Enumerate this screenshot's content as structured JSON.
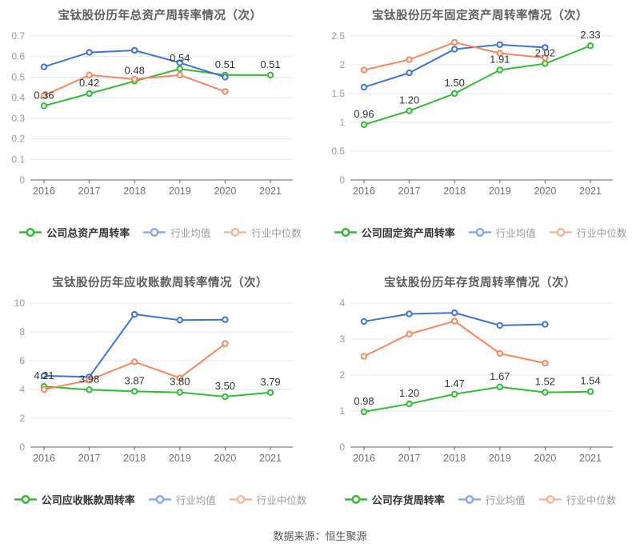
{
  "page": {
    "footer_source": "数据来源：恒生聚源"
  },
  "palette": {
    "company": "#34bb34",
    "industry_avg": "#3f72d9",
    "industry_median": "#f8875c",
    "industry_avg_legend": "#8aabef",
    "industry_median_legend": "#f8b797",
    "grid": "#dfe5f3",
    "axis": "#606060",
    "y_tick": "#999999",
    "x_tick": "#707070",
    "data_label": "#333333"
  },
  "chart_data": [
    {
      "id": "total-asset-turnover",
      "type": "line",
      "title": "宝钛股份历年总资产周转率情况（次）",
      "categories": [
        "2016",
        "2017",
        "2018",
        "2019",
        "2020",
        "2021"
      ],
      "ymax": 0.7,
      "yticks": [
        "0",
        "0.1",
        "0.2",
        "0.3",
        "0.4",
        "0.5",
        "0.6",
        "0.7"
      ],
      "grid": true,
      "legend_position": "bottom",
      "series": [
        {
          "name": "公司总资产周转率",
          "color_key": "company",
          "values": [
            0.36,
            0.42,
            0.48,
            0.54,
            0.51,
            0.51
          ],
          "labels": [
            "0.36",
            "0.42",
            "0.48",
            "0.54",
            "0.51",
            "0.51"
          ]
        },
        {
          "name": "行业均值",
          "color_key": "industry_avg",
          "values": [
            0.55,
            0.62,
            0.63,
            0.57,
            0.5,
            null
          ]
        },
        {
          "name": "行业中位数",
          "color_key": "industry_median",
          "values": [
            0.41,
            0.51,
            0.49,
            0.51,
            0.43,
            null
          ]
        }
      ]
    },
    {
      "id": "fixed-asset-turnover",
      "type": "line",
      "title": "宝钛股份历年固定资产周转率情况（次）",
      "categories": [
        "2016",
        "2017",
        "2018",
        "2019",
        "2020",
        "2021"
      ],
      "ymax": 2.5,
      "yticks": [
        "0",
        "0.5",
        "1",
        "1.5",
        "2",
        "2.5"
      ],
      "grid": true,
      "legend_position": "bottom",
      "series": [
        {
          "name": "公司固定资产周转率",
          "color_key": "company",
          "values": [
            0.96,
            1.2,
            1.5,
            1.91,
            2.02,
            2.33
          ],
          "labels": [
            "0.96",
            "1.20",
            "1.50",
            "1.91",
            "2.02",
            "2.33"
          ]
        },
        {
          "name": "行业均值",
          "color_key": "industry_avg",
          "values": [
            1.61,
            1.86,
            2.27,
            2.35,
            2.3,
            null
          ]
        },
        {
          "name": "行业中位数",
          "color_key": "industry_median",
          "values": [
            1.91,
            2.09,
            2.39,
            2.2,
            2.12,
            null
          ]
        }
      ]
    },
    {
      "id": "receivable-turnover",
      "type": "line",
      "title": "宝钛股份历年应收账款周转率情况（次）",
      "categories": [
        "2016",
        "2017",
        "2018",
        "2019",
        "2020",
        "2021"
      ],
      "ymax": 10,
      "yticks": [
        "0",
        "2",
        "4",
        "6",
        "8",
        "10"
      ],
      "grid": true,
      "legend_position": "bottom",
      "series": [
        {
          "name": "公司应收账款周转率",
          "color_key": "company",
          "values": [
            4.21,
            3.98,
            3.87,
            3.8,
            3.5,
            3.79
          ],
          "labels": [
            "4.21",
            "3.98",
            "3.87",
            "3.80",
            "3.50",
            "3.79"
          ]
        },
        {
          "name": "行业均值",
          "color_key": "industry_avg",
          "values": [
            4.95,
            4.87,
            9.22,
            8.82,
            8.85,
            null
          ]
        },
        {
          "name": "行业中位数",
          "color_key": "industry_median",
          "values": [
            4.0,
            4.65,
            5.92,
            4.8,
            7.18,
            null
          ]
        }
      ]
    },
    {
      "id": "inventory-turnover",
      "type": "line",
      "title": "宝钛股份历年存货周转率情况（次）",
      "categories": [
        "2016",
        "2017",
        "2018",
        "2019",
        "2020",
        "2021"
      ],
      "ymax": 4,
      "yticks": [
        "0",
        "1",
        "2",
        "3",
        "4"
      ],
      "grid": true,
      "legend_position": "bottom",
      "series": [
        {
          "name": "公司存货周转率",
          "color_key": "company",
          "values": [
            0.98,
            1.2,
            1.47,
            1.67,
            1.52,
            1.54
          ],
          "labels": [
            "0.98",
            "1.20",
            "1.47",
            "1.67",
            "1.52",
            "1.54"
          ]
        },
        {
          "name": "行业均值",
          "color_key": "industry_avg",
          "values": [
            3.49,
            3.7,
            3.73,
            3.38,
            3.41,
            null
          ]
        },
        {
          "name": "行业中位数",
          "color_key": "industry_median",
          "values": [
            2.52,
            3.14,
            3.5,
            2.6,
            2.33,
            null
          ]
        }
      ]
    }
  ]
}
